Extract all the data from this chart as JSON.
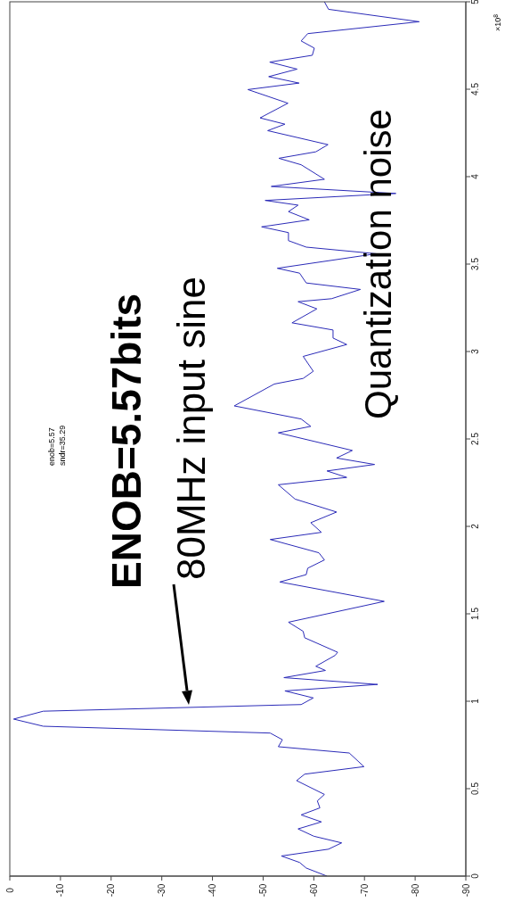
{
  "chart_data": {
    "type": "line",
    "x": [
      -62.6,
      -58.5,
      -57.2,
      -53.6,
      -62.9,
      -65.5,
      -60,
      -56.9,
      -61.5,
      -57.5,
      -61.2,
      -60.7,
      -62.1,
      -56.6,
      -58.2,
      -69.9,
      -67,
      -53,
      -53.8,
      -51.4,
      -6.6,
      -0.75,
      -6.6,
      -53.1,
      -57.5,
      -59.9,
      -54.3,
      -72.6,
      -54.1,
      -62.3,
      -60.4,
      -64.2,
      -64.7,
      -58.2,
      -57.9,
      -55,
      -73.9,
      -53.3,
      -58.5,
      -58.8,
      -62.1,
      -61,
      -51.4,
      -61.5,
      -59.4,
      -64.5,
      -56.3,
      -53,
      -66.5,
      -62.6,
      -72,
      -64.5,
      -67.6,
      -53,
      -59.4,
      -57.5,
      -44.3,
      -52.2,
      -57.9,
      -59.9,
      -57.9,
      -66.5,
      -63.8,
      -63.8,
      -55.7,
      -60.6,
      -56.9,
      -63.5,
      -69.2,
      -58.5,
      -57.2,
      -52.8,
      -72.3,
      -58.5,
      -55,
      -55,
      -49.7,
      -59.1,
      -55,
      -56.9,
      -50.4,
      -76.2,
      -51.6,
      -62.1,
      -57.5,
      -53.1,
      -60.4,
      -62.8,
      -50.9,
      -54.3,
      -49.4,
      -54.9,
      -47,
      -57.1,
      -51.1,
      -56.7,
      -51.3,
      -59.7,
      -60.1,
      -57.5,
      -58.8,
      -80.8,
      -62.9,
      -62.1
    ],
    "series": [
      {
        "color": "#2b2bb8",
        "values": [
          0,
          0.046,
          0.078,
          0.115,
          0.154,
          0.19,
          0.228,
          0.27,
          0.31,
          0.35,
          0.39,
          0.43,
          0.467,
          0.546,
          0.583,
          0.626,
          0.704,
          0.74,
          0.78,
          0.818,
          0.857,
          0.898,
          0.943,
          0.978,
          0.981,
          1.019,
          1.059,
          1.096,
          1.135,
          1.176,
          1.2,
          1.262,
          1.28,
          1.363,
          1.4,
          1.452,
          1.571,
          1.682,
          1.724,
          1.761,
          1.808,
          1.849,
          1.925,
          1.966,
          2.021,
          2.082,
          2.156,
          2.238,
          2.28,
          2.317,
          2.354,
          2.391,
          2.434,
          2.535,
          2.572,
          2.614,
          2.689,
          2.814,
          2.846,
          2.887,
          2.972,
          3.04,
          3.077,
          3.123,
          3.164,
          3.244,
          3.285,
          3.302,
          3.355,
          3.392,
          3.448,
          3.476,
          3.559,
          3.597,
          3.634,
          3.68,
          3.713,
          3.753,
          3.8,
          3.837,
          3.864,
          3.904,
          3.944,
          3.985,
          4.068,
          4.105,
          4.142,
          4.183,
          4.263,
          4.3,
          4.336,
          4.42,
          4.498,
          4.535,
          4.572,
          4.615,
          4.655,
          4.694,
          4.735,
          4.776,
          4.818,
          4.886,
          4.957,
          5
        ]
      }
    ],
    "xlim": [
      0,
      -90
    ],
    "ylim": [
      0,
      5
    ],
    "xticks": [
      0,
      -10,
      -20,
      -30,
      -40,
      -50,
      -60,
      -70,
      -80,
      -90
    ],
    "yticks": [
      0,
      0.5,
      1,
      1.5,
      2,
      2.5,
      3,
      3.5,
      4,
      4.5,
      5
    ],
    "annotations": [
      "ENOB=5.57bits",
      "80MHz input sine",
      "Quantization noise",
      "enob=5.57",
      "sndr=35.29",
      "×10$^{8}$"
    ],
    "grid": false,
    "legend": false,
    "marker": "none",
    "line_style": "solid"
  }
}
